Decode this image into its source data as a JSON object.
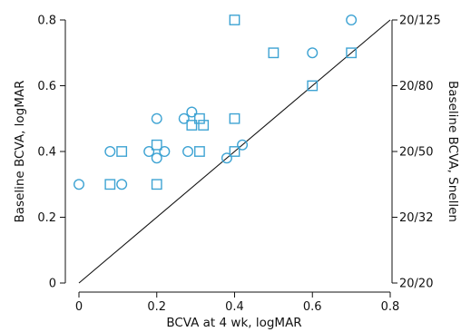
{
  "chart_data": {
    "type": "scatter",
    "xlabel": "BCVA at 4 wk, logMAR",
    "ylabel": "Baseline BCVA, logMAR",
    "y2label": "Baseline BCVA, Snellen",
    "xlim": [
      0,
      0.8
    ],
    "ylim": [
      0,
      0.8
    ],
    "x_ticks": [
      0,
      0.2,
      0.4,
      0.6,
      0.8
    ],
    "x_tick_labels": [
      "0",
      "0.2",
      "0.4",
      "0.6",
      "0.8"
    ],
    "y_ticks": [
      0,
      0.2,
      0.4,
      0.6,
      0.8
    ],
    "y_tick_labels": [
      "0",
      "0.2",
      "0.4",
      "0.6",
      "0.8"
    ],
    "y2_ticks": [
      0,
      0.2,
      0.4,
      0.6,
      0.8
    ],
    "y2_tick_labels": [
      "20/20",
      "20/32",
      "20/50",
      "20/80",
      "20/125"
    ],
    "grid": false,
    "reference_line": {
      "from": [
        0,
        0
      ],
      "to": [
        0.8,
        0.8
      ]
    },
    "marker_color": "#3ea3d3",
    "series": [
      {
        "marker": "circle",
        "points": [
          {
            "x": 0.0,
            "y": 0.3
          },
          {
            "x": 0.08,
            "y": 0.4
          },
          {
            "x": 0.11,
            "y": 0.3
          },
          {
            "x": 0.18,
            "y": 0.4
          },
          {
            "x": 0.2,
            "y": 0.5
          },
          {
            "x": 0.2,
            "y": 0.38
          },
          {
            "x": 0.22,
            "y": 0.4
          },
          {
            "x": 0.27,
            "y": 0.5
          },
          {
            "x": 0.28,
            "y": 0.4
          },
          {
            "x": 0.29,
            "y": 0.52
          },
          {
            "x": 0.38,
            "y": 0.38
          },
          {
            "x": 0.42,
            "y": 0.42
          },
          {
            "x": 0.6,
            "y": 0.7
          },
          {
            "x": 0.7,
            "y": 0.8
          }
        ]
      },
      {
        "marker": "square",
        "points": [
          {
            "x": 0.08,
            "y": 0.3
          },
          {
            "x": 0.11,
            "y": 0.4
          },
          {
            "x": 0.2,
            "y": 0.42
          },
          {
            "x": 0.2,
            "y": 0.3
          },
          {
            "x": 0.29,
            "y": 0.48
          },
          {
            "x": 0.31,
            "y": 0.5
          },
          {
            "x": 0.31,
            "y": 0.4
          },
          {
            "x": 0.32,
            "y": 0.48
          },
          {
            "x": 0.4,
            "y": 0.8
          },
          {
            "x": 0.4,
            "y": 0.5
          },
          {
            "x": 0.4,
            "y": 0.4
          },
          {
            "x": 0.5,
            "y": 0.7
          },
          {
            "x": 0.6,
            "y": 0.6
          },
          {
            "x": 0.7,
            "y": 0.7
          }
        ]
      }
    ]
  }
}
